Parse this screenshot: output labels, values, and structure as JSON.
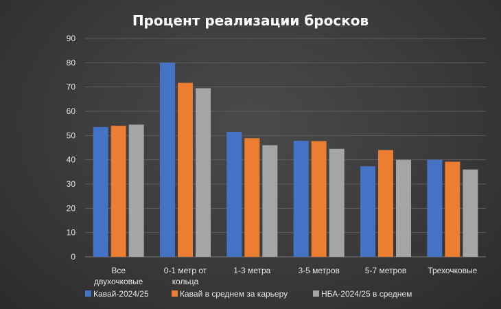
{
  "chart_data": {
    "type": "bar",
    "title": "Процент реализации бросков",
    "categories": [
      [
        "Все",
        "двухочковые"
      ],
      [
        "0-1 метр от",
        "кольца"
      ],
      [
        "1-3 метра"
      ],
      [
        "3-5 метров"
      ],
      [
        "5-7 метров"
      ],
      [
        "Трехочковые"
      ]
    ],
    "series": [
      {
        "name": "Кавай-2024/25",
        "color": "#4472c4",
        "values": [
          53.5,
          80,
          51.5,
          47.8,
          37.3,
          40
        ]
      },
      {
        "name": "Кавай в среднем за карьеру",
        "color": "#ed7d31",
        "values": [
          54,
          71.7,
          48.9,
          47.7,
          44,
          39.2
        ]
      },
      {
        "name": "НБА-2024/25 в среднем",
        "color": "#a5a5a5",
        "values": [
          54.5,
          69.5,
          46,
          44.5,
          40,
          36
        ]
      }
    ],
    "yticks": [
      0,
      10,
      20,
      30,
      40,
      50,
      60,
      70,
      80,
      90
    ],
    "ylim": [
      0,
      90
    ],
    "xlabel": "",
    "ylabel": "",
    "grid": true,
    "legend_position": "bottom"
  }
}
